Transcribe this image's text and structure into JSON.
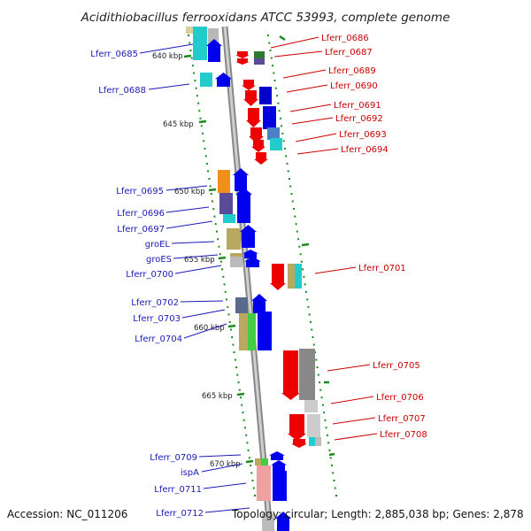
{
  "title": "Acidithiobacillus ferrooxidans ATCC 53993, complete genome",
  "footer": {
    "accession": "Accession: NC_011206",
    "topology": "Topology: circular; Length: 2,885,038 bp; Genes: 2,878"
  },
  "kbp_labels": [
    "640 kbp",
    "645 kbp",
    "650 kbp",
    "655 kbp",
    "660 kbp",
    "665 kbp",
    "670 kbp"
  ],
  "left_labels": [
    "Lferr_0685",
    "Lferr_0688",
    "Lferr_0695",
    "Lferr_0696",
    "Lferr_0697",
    "groEL",
    "groES",
    "Lferr_0700",
    "Lferr_0702",
    "Lferr_0703",
    "Lferr_0704",
    "Lferr_0709",
    "ispA",
    "Lferr_0711",
    "Lferr_0712"
  ],
  "right_labels": [
    "Lferr_0686",
    "Lferr_0687",
    "Lferr_0689",
    "Lferr_0690",
    "Lferr_0691",
    "Lferr_0692",
    "Lferr_0693",
    "Lferr_0694",
    "Lferr_0701",
    "Lferr_0705",
    "Lferr_0706",
    "Lferr_0707",
    "Lferr_0708"
  ],
  "colors": {
    "forward_cds": "#0000ee",
    "reverse_cds": "#ee0000",
    "backbone": "#999999",
    "tick_marks": "#1a8a1a",
    "cog_cyan": "#22cccc",
    "cog_orange": "#f0901a",
    "cog_purple": "#5a4a9a",
    "cog_khaki": "#b8a860",
    "cog_green": "#44cc44",
    "cog_gray": "#888888",
    "cog_pink": "#f0a0a0"
  }
}
